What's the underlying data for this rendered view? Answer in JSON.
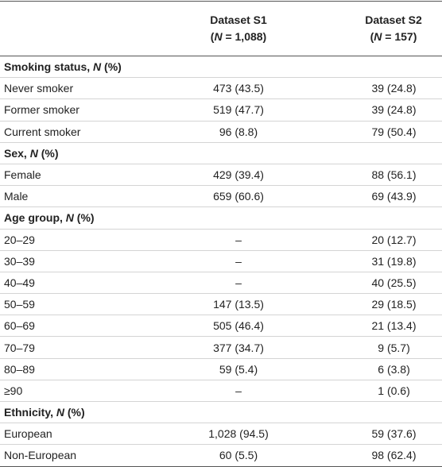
{
  "table": {
    "columns": [
      {
        "name": "Dataset S1",
        "open": "(",
        "var": "N",
        "rest": " = 1,088)"
      },
      {
        "name": "Dataset S2",
        "open": "(",
        "var": "N",
        "rest": " = 157)"
      }
    ],
    "sections": [
      {
        "label": "Smoking status, ",
        "var": "N",
        "rest": " (%)",
        "rows": [
          [
            "Never smoker",
            "473 (43.5)",
            "39 (24.8)"
          ],
          [
            "Former smoker",
            "519 (47.7)",
            "39 (24.8)"
          ],
          [
            "Current smoker",
            "96 (8.8)",
            "79 (50.4)"
          ]
        ]
      },
      {
        "label": "Sex, ",
        "var": "N",
        "rest": " (%)",
        "rows": [
          [
            "Female",
            "429 (39.4)",
            "88 (56.1)"
          ],
          [
            "Male",
            "659 (60.6)",
            "69 (43.9)"
          ]
        ]
      },
      {
        "label": "Age group, ",
        "var": "N",
        "rest": " (%)",
        "rows": [
          [
            "20–29",
            "–",
            "20 (12.7)"
          ],
          [
            "30–39",
            "–",
            "31 (19.8)"
          ],
          [
            "40–49",
            "–",
            "40 (25.5)"
          ],
          [
            "50–59",
            "147 (13.5)",
            "29 (18.5)"
          ],
          [
            "60–69",
            "505 (46.4)",
            "21 (13.4)"
          ],
          [
            "70–79",
            "377 (34.7)",
            "9 (5.7)"
          ],
          [
            "80–89",
            "59 (5.4)",
            "6 (3.8)"
          ],
          [
            "≥90",
            "–",
            "1 (0.6)"
          ]
        ]
      },
      {
        "label": "Ethnicity, ",
        "var": "N",
        "rest": " (%)",
        "rows": [
          [
            "European",
            "1,028 (94.5)",
            "59 (37.6)"
          ],
          [
            "Non-European",
            "60 (5.5)",
            "98 (62.4)"
          ]
        ]
      }
    ]
  }
}
